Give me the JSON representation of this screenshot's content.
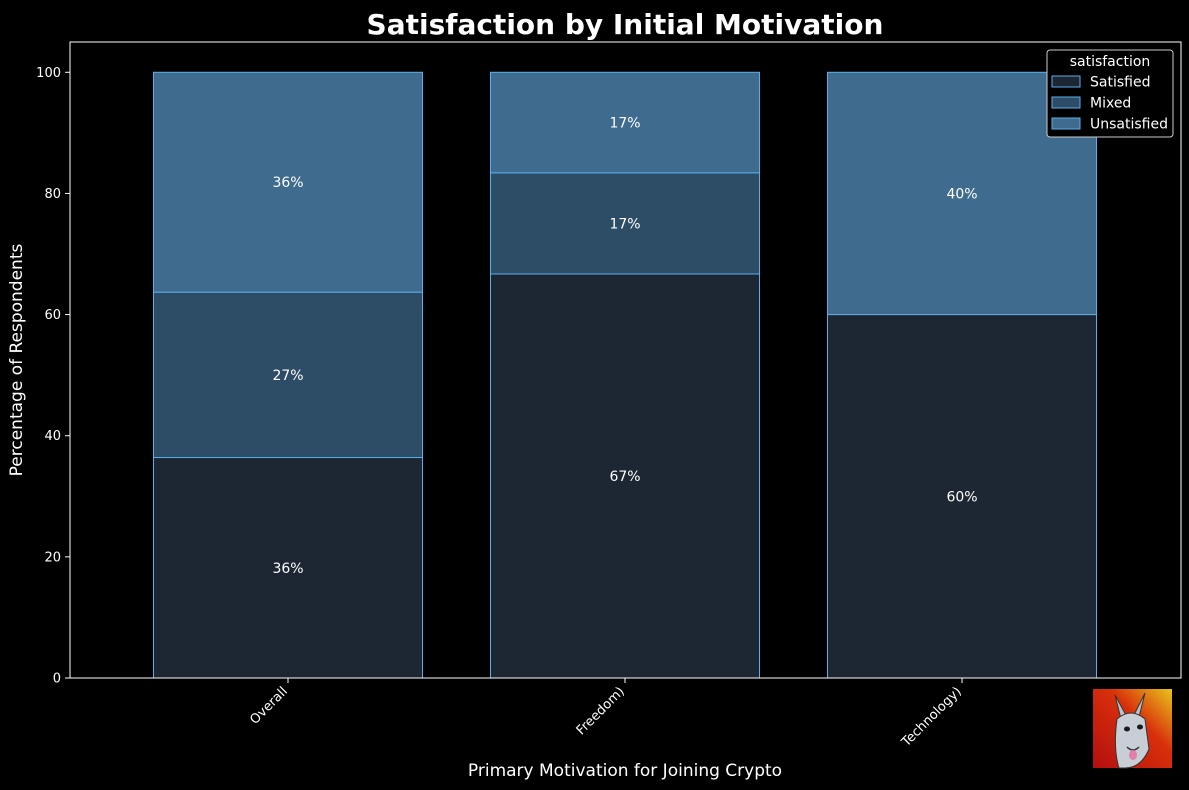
{
  "chart_data": {
    "type": "bar",
    "stacked": true,
    "title": "Satisfaction by Initial Motivation",
    "xlabel": "Primary Motivation for Joining Crypto",
    "ylabel": "Percentage of Respondents",
    "ylim": [
      0,
      105
    ],
    "yticks": [
      0,
      20,
      40,
      60,
      80,
      100
    ],
    "categories": [
      "Overall",
      "Freedom)",
      "Technology)"
    ],
    "series": [
      {
        "name": "Satisfied",
        "values": [
          36.4,
          66.7,
          60.0
        ],
        "labels": [
          "36%",
          "67%",
          "60%"
        ],
        "color": "#1c2733"
      },
      {
        "name": "Mixed",
        "values": [
          27.3,
          16.7,
          0
        ],
        "labels": [
          "27%",
          "17%",
          ""
        ],
        "color": "#2d4d66"
      },
      {
        "name": "Unsatisfied",
        "values": [
          36.3,
          16.6,
          40.0
        ],
        "labels": [
          "36%",
          "17%",
          "40%"
        ],
        "color": "#3f6b8e"
      }
    ],
    "bar_edge_color": "#5aaeea",
    "legend": {
      "title": "satisfaction",
      "position": "top-right"
    },
    "grid": false
  },
  "logo": {
    "name": "llama-avatar"
  }
}
